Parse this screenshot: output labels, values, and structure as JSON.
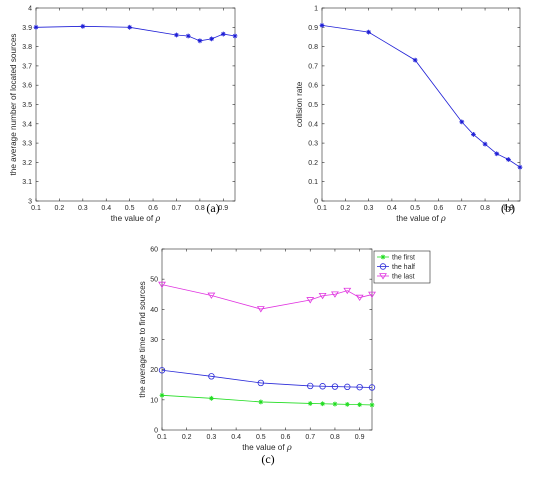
{
  "chart_data": [
    {
      "id": "a",
      "type": "line",
      "caption": "(a)",
      "xlabel": "the value of",
      "xlabel_symbol": "ρ",
      "ylabel": "the average number of located sources",
      "xlim": [
        0.1,
        0.95
      ],
      "ylim": [
        3,
        4
      ],
      "xticks": [
        "0.1",
        "0.2",
        "0.3",
        "0.4",
        "0.5",
        "0.6",
        "0.7",
        "0.8",
        "0.9"
      ],
      "yticks": [
        "3",
        "3.1",
        "3.2",
        "3.3",
        "3.4",
        "3.5",
        "3.6",
        "3.7",
        "3.8",
        "3.9",
        "4"
      ],
      "grid": false,
      "series": [
        {
          "color": "#1f1fd6",
          "marker": "star",
          "x": [
            0.1,
            0.3,
            0.5,
            0.7,
            0.75,
            0.8,
            0.85,
            0.9,
            0.95
          ],
          "values": [
            3.9,
            3.905,
            3.9,
            3.86,
            3.855,
            3.83,
            3.84,
            3.865,
            3.855
          ]
        }
      ]
    },
    {
      "id": "b",
      "type": "line",
      "caption": "(b)",
      "xlabel": "the value of",
      "xlabel_symbol": "ρ",
      "ylabel": "collision rate",
      "xlim": [
        0.1,
        0.95
      ],
      "ylim": [
        0,
        1
      ],
      "xticks": [
        "0.1",
        "0.2",
        "0.3",
        "0.4",
        "0.5",
        "0.6",
        "0.7",
        "0.8",
        "0.9"
      ],
      "yticks": [
        "0",
        "0.1",
        "0.2",
        "0.3",
        "0.4",
        "0.5",
        "0.6",
        "0.7",
        "0.8",
        "0.9",
        "1"
      ],
      "grid": false,
      "series": [
        {
          "color": "#1f1fd6",
          "marker": "star",
          "x": [
            0.1,
            0.3,
            0.5,
            0.7,
            0.75,
            0.8,
            0.85,
            0.9,
            0.95
          ],
          "values": [
            0.91,
            0.875,
            0.73,
            0.41,
            0.345,
            0.295,
            0.245,
            0.215,
            0.175
          ]
        }
      ]
    },
    {
      "id": "c",
      "type": "line",
      "caption": "(c)",
      "xlabel": "the value of",
      "xlabel_symbol": "ρ",
      "ylabel": "the average time to find sources",
      "xlim": [
        0.1,
        0.95
      ],
      "ylim": [
        0,
        60
      ],
      "xticks": [
        "0.1",
        "0.2",
        "0.3",
        "0.4",
        "0.5",
        "0.6",
        "0.7",
        "0.8",
        "0.9"
      ],
      "yticks": [
        "0",
        "10",
        "20",
        "30",
        "40",
        "50",
        "60"
      ],
      "grid": false,
      "legend": "outside-top-right",
      "series": [
        {
          "name": "the first",
          "color": "#22dd22",
          "marker": "star",
          "x": [
            0.1,
            0.3,
            0.5,
            0.7,
            0.75,
            0.8,
            0.85,
            0.9,
            0.95
          ],
          "values": [
            11.5,
            10.5,
            9.3,
            8.8,
            8.7,
            8.6,
            8.5,
            8.4,
            8.3
          ]
        },
        {
          "name": "the half",
          "color": "#2b2bd9",
          "marker": "circle",
          "x": [
            0.1,
            0.3,
            0.5,
            0.7,
            0.75,
            0.8,
            0.85,
            0.9,
            0.95
          ],
          "values": [
            19.8,
            17.8,
            15.6,
            14.6,
            14.5,
            14.4,
            14.3,
            14.2,
            14.1
          ]
        },
        {
          "name": "the last",
          "color": "#e033e0",
          "marker": "triangle-down",
          "x": [
            0.1,
            0.3,
            0.5,
            0.7,
            0.75,
            0.8,
            0.85,
            0.9,
            0.95
          ],
          "values": [
            48.2,
            44.6,
            40.1,
            43.1,
            44.5,
            45.0,
            46.2,
            43.9,
            44.9
          ]
        }
      ]
    }
  ]
}
